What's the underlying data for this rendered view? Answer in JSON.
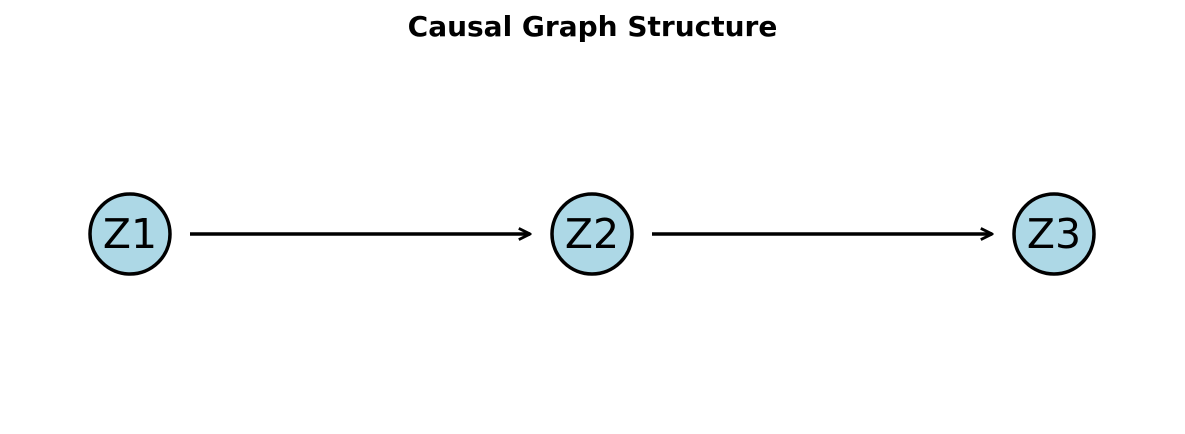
{
  "title": "Causal Graph Structure",
  "colors": {
    "node_fill": "#add8e6",
    "node_stroke": "#000000",
    "edge": "#000000"
  },
  "nodes": [
    {
      "id": "Z1",
      "label": "Z1"
    },
    {
      "id": "Z2",
      "label": "Z2"
    },
    {
      "id": "Z3",
      "label": "Z3"
    }
  ],
  "edges": [
    {
      "from": "Z1",
      "to": "Z2"
    },
    {
      "from": "Z2",
      "to": "Z3"
    }
  ]
}
